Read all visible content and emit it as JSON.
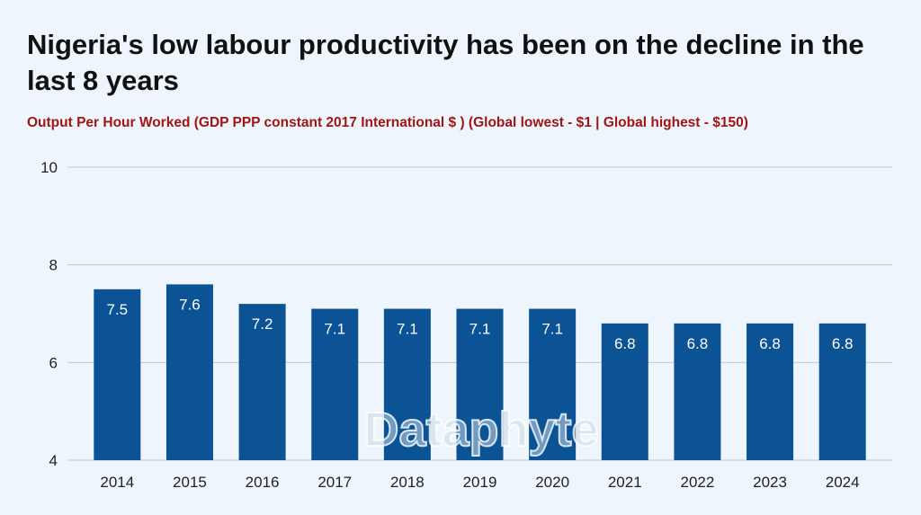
{
  "chart_data": {
    "type": "bar",
    "title": "Nigeria's low labour productivity has been on the decline in the last 8 years",
    "subtitle": "Output Per Hour Worked (GDP PPP constant 2017 International $ )  (Global lowest - $1 | Global highest - $150)",
    "categories": [
      "2014",
      "2015",
      "2016",
      "2017",
      "2018",
      "2019",
      "2020",
      "2021",
      "2022",
      "2023",
      "2024"
    ],
    "values": [
      7.5,
      7.6,
      7.2,
      7.1,
      7.1,
      7.1,
      7.1,
      6.8,
      6.8,
      6.8,
      6.8
    ],
    "data_labels": [
      "7.5",
      "7.6",
      "7.2",
      "7.1",
      "7.1",
      "7.1",
      "7.1",
      "6.8",
      "6.8",
      "6.8",
      "6.8"
    ],
    "ylim": [
      4,
      10
    ],
    "yticks": [
      4,
      6,
      8,
      10
    ],
    "xlabel": "",
    "ylabel": "",
    "grid": true,
    "bar_color": "#0b5394",
    "title_color": "#111111",
    "subtitle_color": "#a01515",
    "background_color": "#eef5fc",
    "watermark": "Dataphyte"
  }
}
